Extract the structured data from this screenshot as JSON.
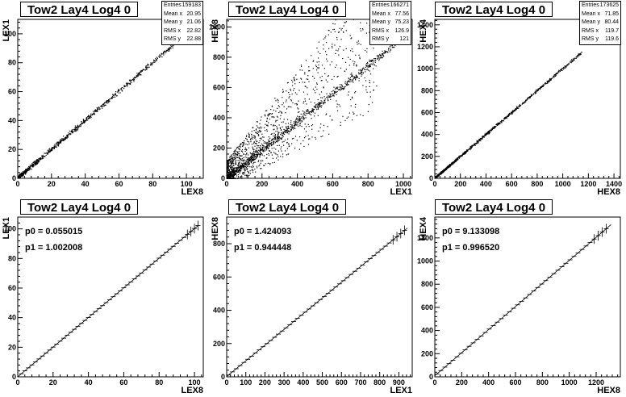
{
  "chart_data": [
    {
      "type": "scatter",
      "title": "Tow2 Lay4 Log4 0",
      "xlabel": "LEX8",
      "ylabel": "LEX1",
      "xlim": [
        0,
        110
      ],
      "ylim": [
        0,
        110
      ],
      "xticks": [
        0,
        20,
        40,
        60,
        80,
        100
      ],
      "yticks": [
        0,
        20,
        40,
        60,
        80,
        100
      ],
      "relation": {
        "slope": 1.002,
        "intercept": 0.055,
        "x_range": [
          0,
          108
        ],
        "spread": 0.8,
        "outliers": 0
      },
      "stats": [
        {
          "label": "Entries",
          "value": "159183"
        },
        {
          "label": "Mean x",
          "value": "20.95"
        },
        {
          "label": "Mean y",
          "value": "21.06"
        },
        {
          "label": "RMS x",
          "value": "22.82"
        },
        {
          "label": "RMS y",
          "value": "22.88"
        }
      ]
    },
    {
      "type": "scatter",
      "title": "Tow2 Lay4 Log4 0",
      "xlabel": "LEX1",
      "ylabel": "HEX8",
      "xlim": [
        0,
        1050
      ],
      "ylim": [
        0,
        1050
      ],
      "xticks": [
        0,
        200,
        400,
        600,
        800,
        1000
      ],
      "yticks": [
        0,
        200,
        400,
        600,
        800,
        1000
      ],
      "relation": {
        "slope": 0.93,
        "intercept": 0,
        "x_range": [
          0,
          1000
        ],
        "spread": 14,
        "outliers": 1300
      },
      "stats": [
        {
          "label": "Entries",
          "value": "166271"
        },
        {
          "label": "Mean x",
          "value": "77.56"
        },
        {
          "label": "Mean y",
          "value": "75.23"
        },
        {
          "label": "RMS x",
          "value": "126.9"
        },
        {
          "label": "RMS y",
          "value": "121"
        }
      ]
    },
    {
      "type": "scatter",
      "title": "Tow2 Lay4 Log4 0",
      "xlabel": "HEX8",
      "ylabel": "HEX4",
      "xlim": [
        0,
        1450
      ],
      "ylim": [
        0,
        1450
      ],
      "xticks": [
        0,
        200,
        400,
        600,
        800,
        1000,
        1200,
        1400
      ],
      "yticks": [
        0,
        200,
        400,
        600,
        800,
        1000,
        1200,
        1400
      ],
      "relation": {
        "slope": 1.0,
        "intercept": 0,
        "x_range": [
          0,
          1150
        ],
        "spread": 6,
        "outliers": 0
      },
      "stats": [
        {
          "label": "Entries",
          "value": "173625"
        },
        {
          "label": "Mean x",
          "value": "71.85"
        },
        {
          "label": "Mean y",
          "value": "80.44"
        },
        {
          "label": "RMS x",
          "value": "119.7"
        },
        {
          "label": "RMS y",
          "value": "119.6"
        }
      ]
    },
    {
      "type": "line",
      "title": "Tow2 Lay4 Log4 0",
      "xlabel": "LEX8",
      "ylabel": "LEX1",
      "xlim": [
        0,
        105
      ],
      "ylim": [
        0,
        108
      ],
      "xticks": [
        0,
        20,
        40,
        60,
        80,
        100
      ],
      "yticks": [
        0,
        20,
        40,
        60,
        80,
        100
      ],
      "fit": {
        "p0": "p0 = 0.055015",
        "p1": "p1 = 1.002008",
        "p0_value": 0.055015,
        "p1_value": 1.002008,
        "x_range": [
          0,
          102
        ]
      },
      "points_x_range": [
        2,
        102
      ],
      "points_step": 2
    },
    {
      "type": "line",
      "title": "Tow2 Lay4 Log4 0",
      "xlabel": "LEX1",
      "ylabel": "HEX8",
      "xlim": [
        0,
        970
      ],
      "ylim": [
        0,
        960
      ],
      "xticks": [
        0,
        100,
        200,
        300,
        400,
        500,
        600,
        700,
        800,
        900
      ],
      "yticks": [
        0,
        200,
        400,
        600,
        800
      ],
      "fit": {
        "p0": "p0 = 1.424093",
        "p1": "p1 = 0.944448",
        "p0_value": 1.424093,
        "p1_value": 0.944448,
        "x_range": [
          0,
          945
        ]
      },
      "points_x_range": [
        10,
        940
      ],
      "points_step": 20
    },
    {
      "type": "line",
      "title": "Tow2 Lay4 Log4 0",
      "xlabel": "HEX8",
      "ylabel": "HEX4",
      "xlim": [
        0,
        1380
      ],
      "ylim": [
        0,
        1380
      ],
      "xticks": [
        0,
        200,
        400,
        600,
        800,
        1000,
        1200
      ],
      "yticks": [
        0,
        200,
        400,
        600,
        800,
        1000,
        1200
      ],
      "fit": {
        "p0": "p0 = 9.133098",
        "p1": "p1 = 0.996520",
        "p0_value": 9.133098,
        "p1_value": 0.99652,
        "x_range": [
          0,
          1310
        ]
      },
      "points_x_range": [
        15,
        1300
      ],
      "points_step": 30
    }
  ]
}
